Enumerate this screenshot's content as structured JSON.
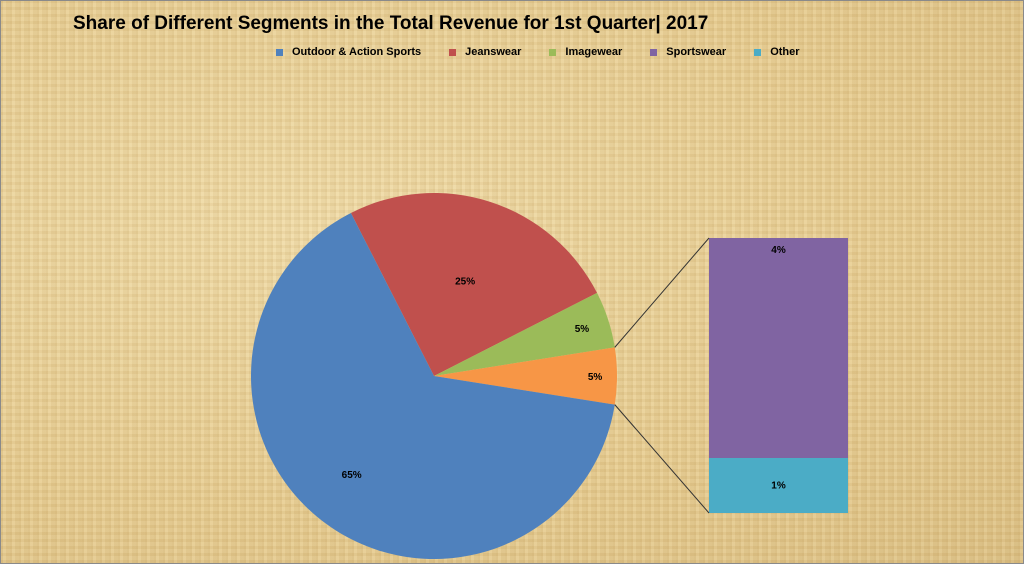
{
  "chart_data": {
    "type": "pie",
    "subtype": "bar-of-pie",
    "title": "Share of Different Segments in the Total Revenue for 1st Quarter| 2017",
    "legend_position": "top",
    "series": [
      {
        "name": "Outdoor & Action Sports",
        "value": 65,
        "label": "65%",
        "color": "#4f81bd"
      },
      {
        "name": "Jeanswear",
        "value": 25,
        "label": "25%",
        "color": "#c0504d"
      },
      {
        "name": "Imagewear",
        "value": 5,
        "label": "5%",
        "color": "#9bbb59"
      },
      {
        "name": "Sportswear",
        "value": 4,
        "label": "4%",
        "color": "#8064a2"
      },
      {
        "name": "Other",
        "value": 1,
        "label": "1%",
        "color": "#4bacc6"
      }
    ],
    "combined_slice": {
      "label": "5%",
      "color": "#f79646",
      "members": [
        "Sportswear",
        "Other"
      ]
    }
  }
}
